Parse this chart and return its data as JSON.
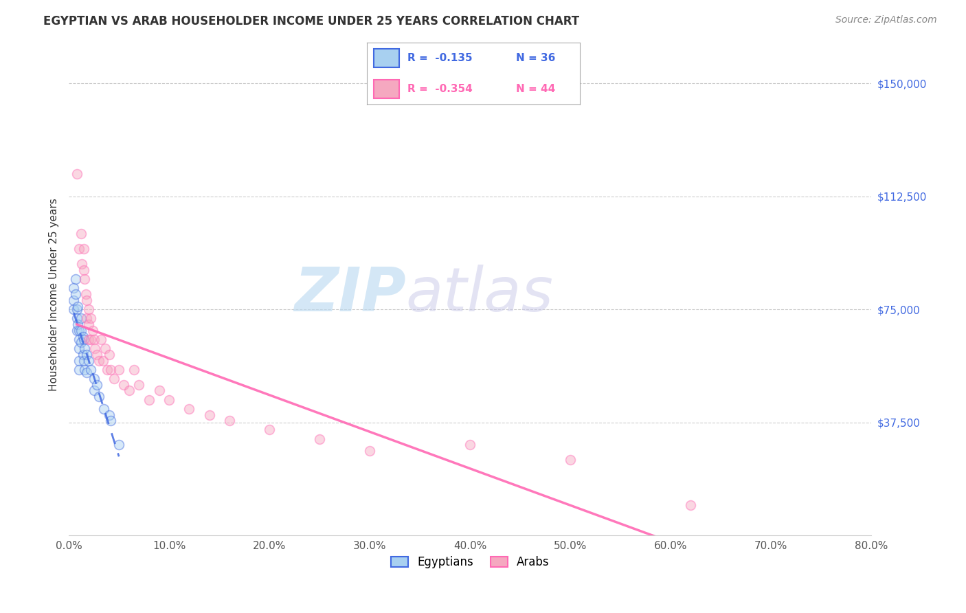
{
  "title": "EGYPTIAN VS ARAB HOUSEHOLDER INCOME UNDER 25 YEARS CORRELATION CHART",
  "source": "Source: ZipAtlas.com",
  "ylabel": "Householder Income Under 25 years",
  "xlim": [
    0.0,
    0.8
  ],
  "ylim": [
    0,
    160000
  ],
  "ytick_values": [
    37500,
    75000,
    112500,
    150000
  ],
  "ytick_labels": [
    "$37,500",
    "$75,000",
    "$112,500",
    "$150,000"
  ],
  "grid_color": "#cccccc",
  "background_color": "#ffffff",
  "egyptian_color": "#a8d0f0",
  "arab_color": "#f5a8c0",
  "egyptian_line_color": "#4169E1",
  "arab_line_color": "#FF69B4",
  "egyptians_x": [
    0.005,
    0.005,
    0.005,
    0.007,
    0.007,
    0.008,
    0.008,
    0.008,
    0.009,
    0.009,
    0.01,
    0.01,
    0.01,
    0.01,
    0.01,
    0.012,
    0.012,
    0.012,
    0.014,
    0.014,
    0.015,
    0.015,
    0.016,
    0.016,
    0.018,
    0.018,
    0.02,
    0.022,
    0.025,
    0.025,
    0.028,
    0.03,
    0.035,
    0.04,
    0.042,
    0.05
  ],
  "egyptians_y": [
    82000,
    78000,
    75000,
    85000,
    80000,
    75000,
    72000,
    68000,
    76000,
    70000,
    68000,
    65000,
    62000,
    58000,
    55000,
    72000,
    68000,
    64000,
    66000,
    60000,
    65000,
    58000,
    62000,
    55000,
    60000,
    54000,
    58000,
    55000,
    52000,
    48000,
    50000,
    46000,
    42000,
    40000,
    38000,
    30000
  ],
  "arabs_x": [
    0.008,
    0.01,
    0.012,
    0.013,
    0.015,
    0.015,
    0.016,
    0.017,
    0.018,
    0.018,
    0.02,
    0.02,
    0.02,
    0.022,
    0.022,
    0.024,
    0.025,
    0.026,
    0.028,
    0.03,
    0.032,
    0.034,
    0.036,
    0.038,
    0.04,
    0.042,
    0.045,
    0.05,
    0.055,
    0.06,
    0.065,
    0.07,
    0.08,
    0.09,
    0.1,
    0.12,
    0.14,
    0.16,
    0.2,
    0.25,
    0.3,
    0.4,
    0.5,
    0.62
  ],
  "arabs_y": [
    120000,
    95000,
    100000,
    90000,
    95000,
    88000,
    85000,
    80000,
    78000,
    72000,
    75000,
    70000,
    65000,
    72000,
    65000,
    68000,
    65000,
    62000,
    60000,
    58000,
    65000,
    58000,
    62000,
    55000,
    60000,
    55000,
    52000,
    55000,
    50000,
    48000,
    55000,
    50000,
    45000,
    48000,
    45000,
    42000,
    40000,
    38000,
    35000,
    32000,
    28000,
    30000,
    25000,
    10000
  ],
  "marker_size": 100,
  "marker_alpha": 0.45,
  "marker_linewidth": 1.2
}
